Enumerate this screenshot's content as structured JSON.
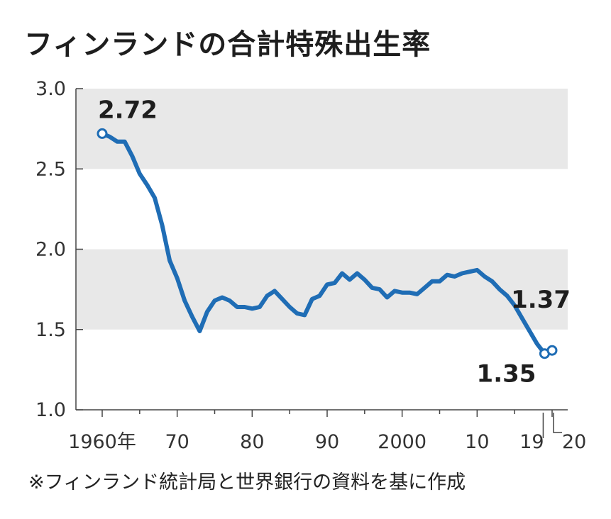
{
  "title": "フィンランドの合計特殊出生率",
  "note": "※フィンランド統計局と世界銀行の資料を基に作成",
  "chart_data": {
    "type": "line",
    "xlim": [
      1960,
      2020
    ],
    "ylim": [
      1.0,
      3.0
    ],
    "grid": "alternating horizontal bands",
    "series_color": "#1f6db5",
    "band_color": "#e8e8e8",
    "x_tick_labels": [
      {
        "x": 1960,
        "label": "1960年"
      },
      {
        "x": 1970,
        "label": "70"
      },
      {
        "x": 1980,
        "label": "80"
      },
      {
        "x": 1990,
        "label": "90"
      },
      {
        "x": 2000,
        "label": "2000"
      },
      {
        "x": 2010,
        "label": "10"
      },
      {
        "x": 2019,
        "label": "19"
      },
      {
        "x": 2020,
        "label": "20"
      }
    ],
    "y_tick_labels": [
      {
        "y": 1.0,
        "label": "1.0"
      },
      {
        "y": 1.5,
        "label": "1.5"
      },
      {
        "y": 2.0,
        "label": "2.0"
      },
      {
        "y": 2.5,
        "label": "2.5"
      },
      {
        "y": 3.0,
        "label": "3.0"
      }
    ],
    "x": [
      1960,
      1961,
      1962,
      1963,
      1964,
      1965,
      1966,
      1967,
      1968,
      1969,
      1970,
      1971,
      1972,
      1973,
      1974,
      1975,
      1976,
      1977,
      1978,
      1979,
      1980,
      1981,
      1982,
      1983,
      1984,
      1985,
      1986,
      1987,
      1988,
      1989,
      1990,
      1991,
      1992,
      1993,
      1994,
      1995,
      1996,
      1997,
      1998,
      1999,
      2000,
      2001,
      2002,
      2003,
      2004,
      2005,
      2006,
      2007,
      2008,
      2009,
      2010,
      2011,
      2012,
      2013,
      2014,
      2015,
      2016,
      2017,
      2018,
      2019,
      2020
    ],
    "y": [
      2.72,
      2.7,
      2.67,
      2.67,
      2.58,
      2.47,
      2.4,
      2.32,
      2.15,
      1.93,
      1.82,
      1.68,
      1.58,
      1.49,
      1.61,
      1.68,
      1.7,
      1.68,
      1.64,
      1.64,
      1.63,
      1.64,
      1.71,
      1.74,
      1.69,
      1.64,
      1.6,
      1.59,
      1.69,
      1.71,
      1.78,
      1.79,
      1.85,
      1.81,
      1.85,
      1.81,
      1.76,
      1.75,
      1.7,
      1.74,
      1.73,
      1.73,
      1.72,
      1.76,
      1.8,
      1.8,
      1.84,
      1.83,
      1.85,
      1.86,
      1.87,
      1.83,
      1.8,
      1.75,
      1.71,
      1.65,
      1.57,
      1.49,
      1.41,
      1.35,
      1.37
    ],
    "data_labels": [
      {
        "x": 1960,
        "y": 2.72,
        "text": "2.72"
      },
      {
        "x": 2019,
        "y": 1.35,
        "text": "1.35"
      },
      {
        "x": 2020,
        "y": 1.37,
        "text": "1.37"
      }
    ]
  }
}
